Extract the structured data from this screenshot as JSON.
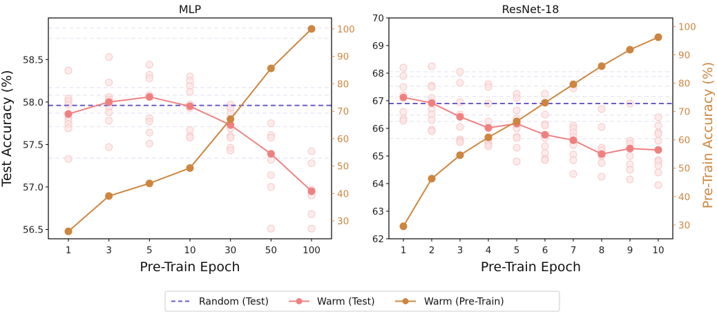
{
  "colors": {
    "random": "#6a5acd",
    "warm_test": "#f08080",
    "warm_pretrain": "#cd853f",
    "seed_points": "#f8c8c8",
    "seed_baselines": "#ece8f4",
    "axis": "#000000"
  },
  "legend": {
    "placement": "bottom-center",
    "items": [
      {
        "label": "Random (Test)",
        "style": "dashed"
      },
      {
        "label": "Warm (Test)",
        "style": "line-marker"
      },
      {
        "label": "Warm (Pre-Train)",
        "style": "line-marker"
      }
    ]
  },
  "chart_data": [
    {
      "type": "line",
      "title": "MLP",
      "xlabel": "Pre-Train Epoch",
      "ylabel": "Test Accuracy (%)",
      "ylabel_right": "",
      "categories": [
        "1",
        "3",
        "5",
        "10",
        "30",
        "50",
        "100"
      ],
      "ylim": [
        56.39,
        58.99
      ],
      "yticks": [
        "56.5",
        "57.0",
        "57.5",
        "58.0",
        "58.5"
      ],
      "ylim_right": [
        23.5,
        104.0
      ],
      "yticks_right": [
        "30",
        "40",
        "50",
        "60",
        "70",
        "80",
        "90",
        "100"
      ],
      "random_test": 57.96,
      "random_seed_baselines": [
        58.87,
        58.75,
        58.17,
        58.08,
        57.87,
        57.71,
        57.34
      ],
      "series": [
        {
          "name": "Warm (Test)",
          "axis": "left",
          "values": [
            57.86,
            58.0,
            58.06,
            57.95,
            57.73,
            57.39,
            56.95
          ]
        },
        {
          "name": "Warm (Pre-Train)",
          "axis": "right",
          "values": [
            26.2,
            39.1,
            43.7,
            49.3,
            67.1,
            85.6,
            100.0
          ]
        }
      ],
      "seed_points": [
        [
          58.37,
          58.04,
          58.01,
          57.97,
          57.86,
          57.82,
          57.78,
          57.74,
          57.69,
          57.33
        ],
        [
          58.53,
          58.23,
          58.06,
          58.03,
          57.99,
          57.94,
          57.88,
          57.78,
          57.47
        ],
        [
          58.44,
          58.32,
          58.28,
          58.08,
          57.81,
          57.77,
          57.64,
          57.51
        ],
        [
          58.3,
          58.25,
          58.19,
          58.12,
          57.97,
          57.93,
          57.67,
          57.6,
          57.58
        ],
        [
          57.97,
          57.93,
          57.87,
          57.73,
          57.69,
          57.6,
          57.58,
          57.46,
          57.43
        ],
        [
          57.75,
          57.61,
          57.58,
          57.32,
          57.14,
          57.0,
          56.51
        ],
        [
          57.42,
          57.28,
          56.97,
          56.9,
          56.68,
          56.51
        ]
      ]
    },
    {
      "type": "line",
      "title": "ResNet-18",
      "xlabel": "Pre-Train Epoch",
      "ylabel": "",
      "ylabel_right": "Pre-Train Accuracy (%)",
      "categories": [
        "1",
        "2",
        "3",
        "4",
        "5",
        "6",
        "7",
        "8",
        "9",
        "10"
      ],
      "ylim": [
        62,
        70
      ],
      "yticks": [
        "62",
        "63",
        "64",
        "65",
        "66",
        "67",
        "68",
        "69",
        "70"
      ],
      "ylim_right": [
        25.1,
        103.0
      ],
      "yticks_right": [
        "30",
        "40",
        "50",
        "60",
        "70",
        "80",
        "90",
        "100"
      ],
      "random_test": 66.9,
      "random_seed_baselines": [
        68.05,
        67.88,
        67.53,
        67.15,
        66.48,
        66.25,
        65.63
      ],
      "series": [
        {
          "name": "Warm (Test)",
          "axis": "left",
          "values": [
            67.12,
            66.92,
            66.42,
            66.02,
            66.17,
            65.77,
            65.57,
            65.07,
            65.27,
            65.22
          ]
        },
        {
          "name": "Warm (Pre-Train)",
          "axis": "right",
          "values": [
            29.5,
            46.3,
            54.6,
            60.9,
            66.5,
            73.1,
            79.6,
            86.0,
            91.8,
            96.2
          ]
        }
      ],
      "seed_points": [
        [
          68.2,
          67.9,
          67.5,
          67.2,
          66.6,
          66.35,
          66.28
        ],
        [
          68.25,
          67.55,
          67.5,
          67.1,
          66.7,
          66.5,
          66.3,
          65.95,
          65.9
        ],
        [
          68.05,
          67.65,
          66.95,
          66.5,
          66.05,
          65.6,
          65.55,
          65.5
        ],
        [
          67.6,
          67.5,
          66.9,
          66.25,
          65.6,
          65.5,
          65.4,
          65.35
        ],
        [
          67.25,
          67.1,
          66.65,
          66.35,
          66.0,
          65.7,
          65.65,
          65.3,
          64.8
        ],
        [
          67.25,
          66.5,
          66.15,
          66.1,
          65.65,
          65.35,
          65.1,
          64.9,
          64.85
        ],
        [
          67.45,
          66.1,
          66.0,
          65.85,
          65.7,
          65.4,
          65.05,
          64.85,
          64.35
        ],
        [
          66.7,
          66.05,
          65.3,
          65.2,
          65.0,
          64.75,
          64.25
        ],
        [
          66.9,
          65.55,
          65.45,
          65.0,
          64.7,
          64.5,
          64.15
        ],
        [
          66.4,
          66.1,
          65.85,
          65.8,
          65.55,
          64.85,
          64.8,
          64.65,
          64.4,
          63.95
        ]
      ]
    }
  ]
}
